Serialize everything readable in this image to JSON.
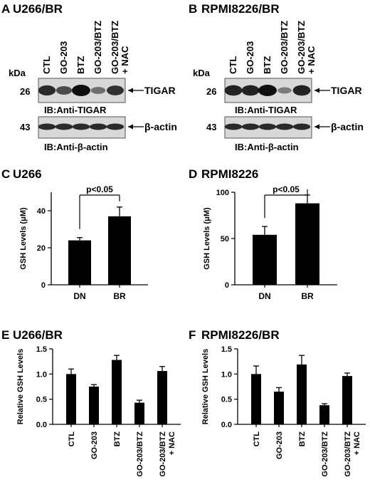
{
  "panels": {
    "A": {
      "letter": "A",
      "title": "U266/BR"
    },
    "B": {
      "letter": "B",
      "title": "RPMI8226/BR"
    },
    "C": {
      "letter": "C",
      "title": "U266"
    },
    "D": {
      "letter": "D",
      "title": "RPMI8226"
    },
    "E": {
      "letter": "E",
      "title": "U266/BR"
    },
    "F": {
      "letter": "F",
      "title": "RPMI8226/BR"
    }
  },
  "blots": {
    "kda_label": "kDa",
    "lanes": [
      "CTL",
      "GO-203",
      "BTZ",
      "GO-203/BTZ",
      "GO-203/BTZ\n+ NAC"
    ],
    "tigar": {
      "marker": "26",
      "protein_label": "TIGAR",
      "ib_label": "IB:Anti-TIGAR"
    },
    "actin": {
      "marker": "43",
      "protein_label": "β-actin",
      "ib_label": "IB:Anti-β-actin"
    },
    "A_tigar_intensity": [
      0.8,
      0.55,
      1.0,
      0.3,
      0.75
    ],
    "B_tigar_intensity": [
      0.85,
      0.85,
      1.0,
      0.2,
      0.85
    ],
    "actin_intensity": [
      0.8,
      0.8,
      0.8,
      0.8,
      0.8
    ]
  },
  "colors": {
    "bar": "#000000",
    "axis": "#000000",
    "band": "#111111",
    "membrane": "#d8d8d8"
  },
  "chart_data": [
    {
      "panel": "C",
      "type": "bar",
      "title": "U266",
      "categories": [
        "DN",
        "BR"
      ],
      "values": [
        24,
        37
      ],
      "errors": [
        1.5,
        5
      ],
      "ylabel": "GSH Levels (μM)",
      "ylim": [
        0,
        50
      ],
      "yticks": [
        0,
        20,
        40
      ],
      "significance": "p<0.05"
    },
    {
      "panel": "D",
      "type": "bar",
      "title": "RPMI8226",
      "categories": [
        "DN",
        "BR"
      ],
      "values": [
        54,
        88
      ],
      "errors": [
        9,
        9
      ],
      "ylabel": "GSH Levels (μM)",
      "ylim": [
        0,
        100
      ],
      "yticks": [
        0,
        50,
        100
      ],
      "significance": "p<0.05"
    },
    {
      "panel": "E",
      "type": "bar",
      "title": "U266/BR",
      "categories": [
        "CTL",
        "GO-203",
        "BTZ",
        "GO-203/BTZ",
        "GO-203/BTZ\n+ NAC"
      ],
      "values": [
        1.0,
        0.75,
        1.28,
        0.43,
        1.06
      ],
      "errors": [
        0.1,
        0.04,
        0.09,
        0.05,
        0.09
      ],
      "ylabel": "Relative GSH Levels",
      "ylim": [
        0,
        1.5
      ],
      "yticks": [
        0.0,
        0.5,
        1.0,
        1.5
      ]
    },
    {
      "panel": "F",
      "type": "bar",
      "title": "RPMI8226/BR",
      "categories": [
        "CTL",
        "GO-203",
        "BTZ",
        "GO-203/BTZ",
        "GO-203/BTZ\n+ NAC"
      ],
      "values": [
        1.0,
        0.65,
        1.19,
        0.38,
        0.96
      ],
      "errors": [
        0.16,
        0.08,
        0.18,
        0.03,
        0.06
      ],
      "ylabel": "Relative GSH Levels",
      "ylim": [
        0,
        1.5
      ],
      "yticks": [
        0.0,
        0.5,
        1.0,
        1.5
      ]
    }
  ]
}
